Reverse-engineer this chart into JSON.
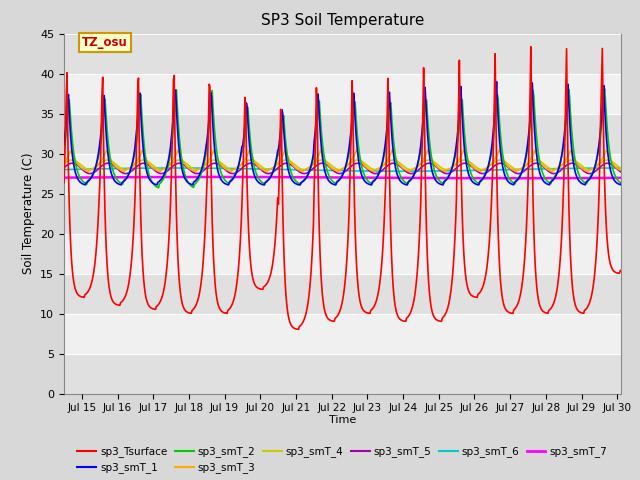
{
  "title": "SP3 Soil Temperature",
  "xlabel": "Time",
  "ylabel": "Soil Temperature (C)",
  "ylim": [
    0,
    45
  ],
  "yticks": [
    0,
    5,
    10,
    15,
    20,
    25,
    30,
    35,
    40,
    45
  ],
  "xlim_start": 14.5,
  "xlim_end": 30.1,
  "xtick_labels": [
    "Jul 15",
    "Jul 16",
    "Jul 17",
    "Jul 18",
    "Jul 19",
    "Jul 20",
    "Jul 21",
    "Jul 22",
    "Jul 23",
    "Jul 24",
    "Jul 25",
    "Jul 26",
    "Jul 27",
    "Jul 28",
    "Jul 29",
    "Jul 30"
  ],
  "xtick_positions": [
    15,
    16,
    17,
    18,
    19,
    20,
    21,
    22,
    23,
    24,
    25,
    26,
    27,
    28,
    29,
    30
  ],
  "annotation_text": "TZ_osu",
  "annotation_color": "#cc0000",
  "annotation_bg": "#ffffcc",
  "annotation_border": "#cc9900",
  "colors": {
    "sp3_Tsurface": "#ff0000",
    "sp3_smT_1": "#0000ff",
    "sp3_smT_2": "#00cc00",
    "sp3_smT_3": "#ffaa00",
    "sp3_smT_4": "#cccc00",
    "sp3_smT_5": "#aa00aa",
    "sp3_smT_6": "#00cccc",
    "sp3_smT_7": "#ff00ff"
  },
  "background_color": "#d8d8d8",
  "plot_bg_light": "#f0f0f0",
  "plot_bg_dark": "#e0e0e0",
  "grid_color": "#ffffff"
}
